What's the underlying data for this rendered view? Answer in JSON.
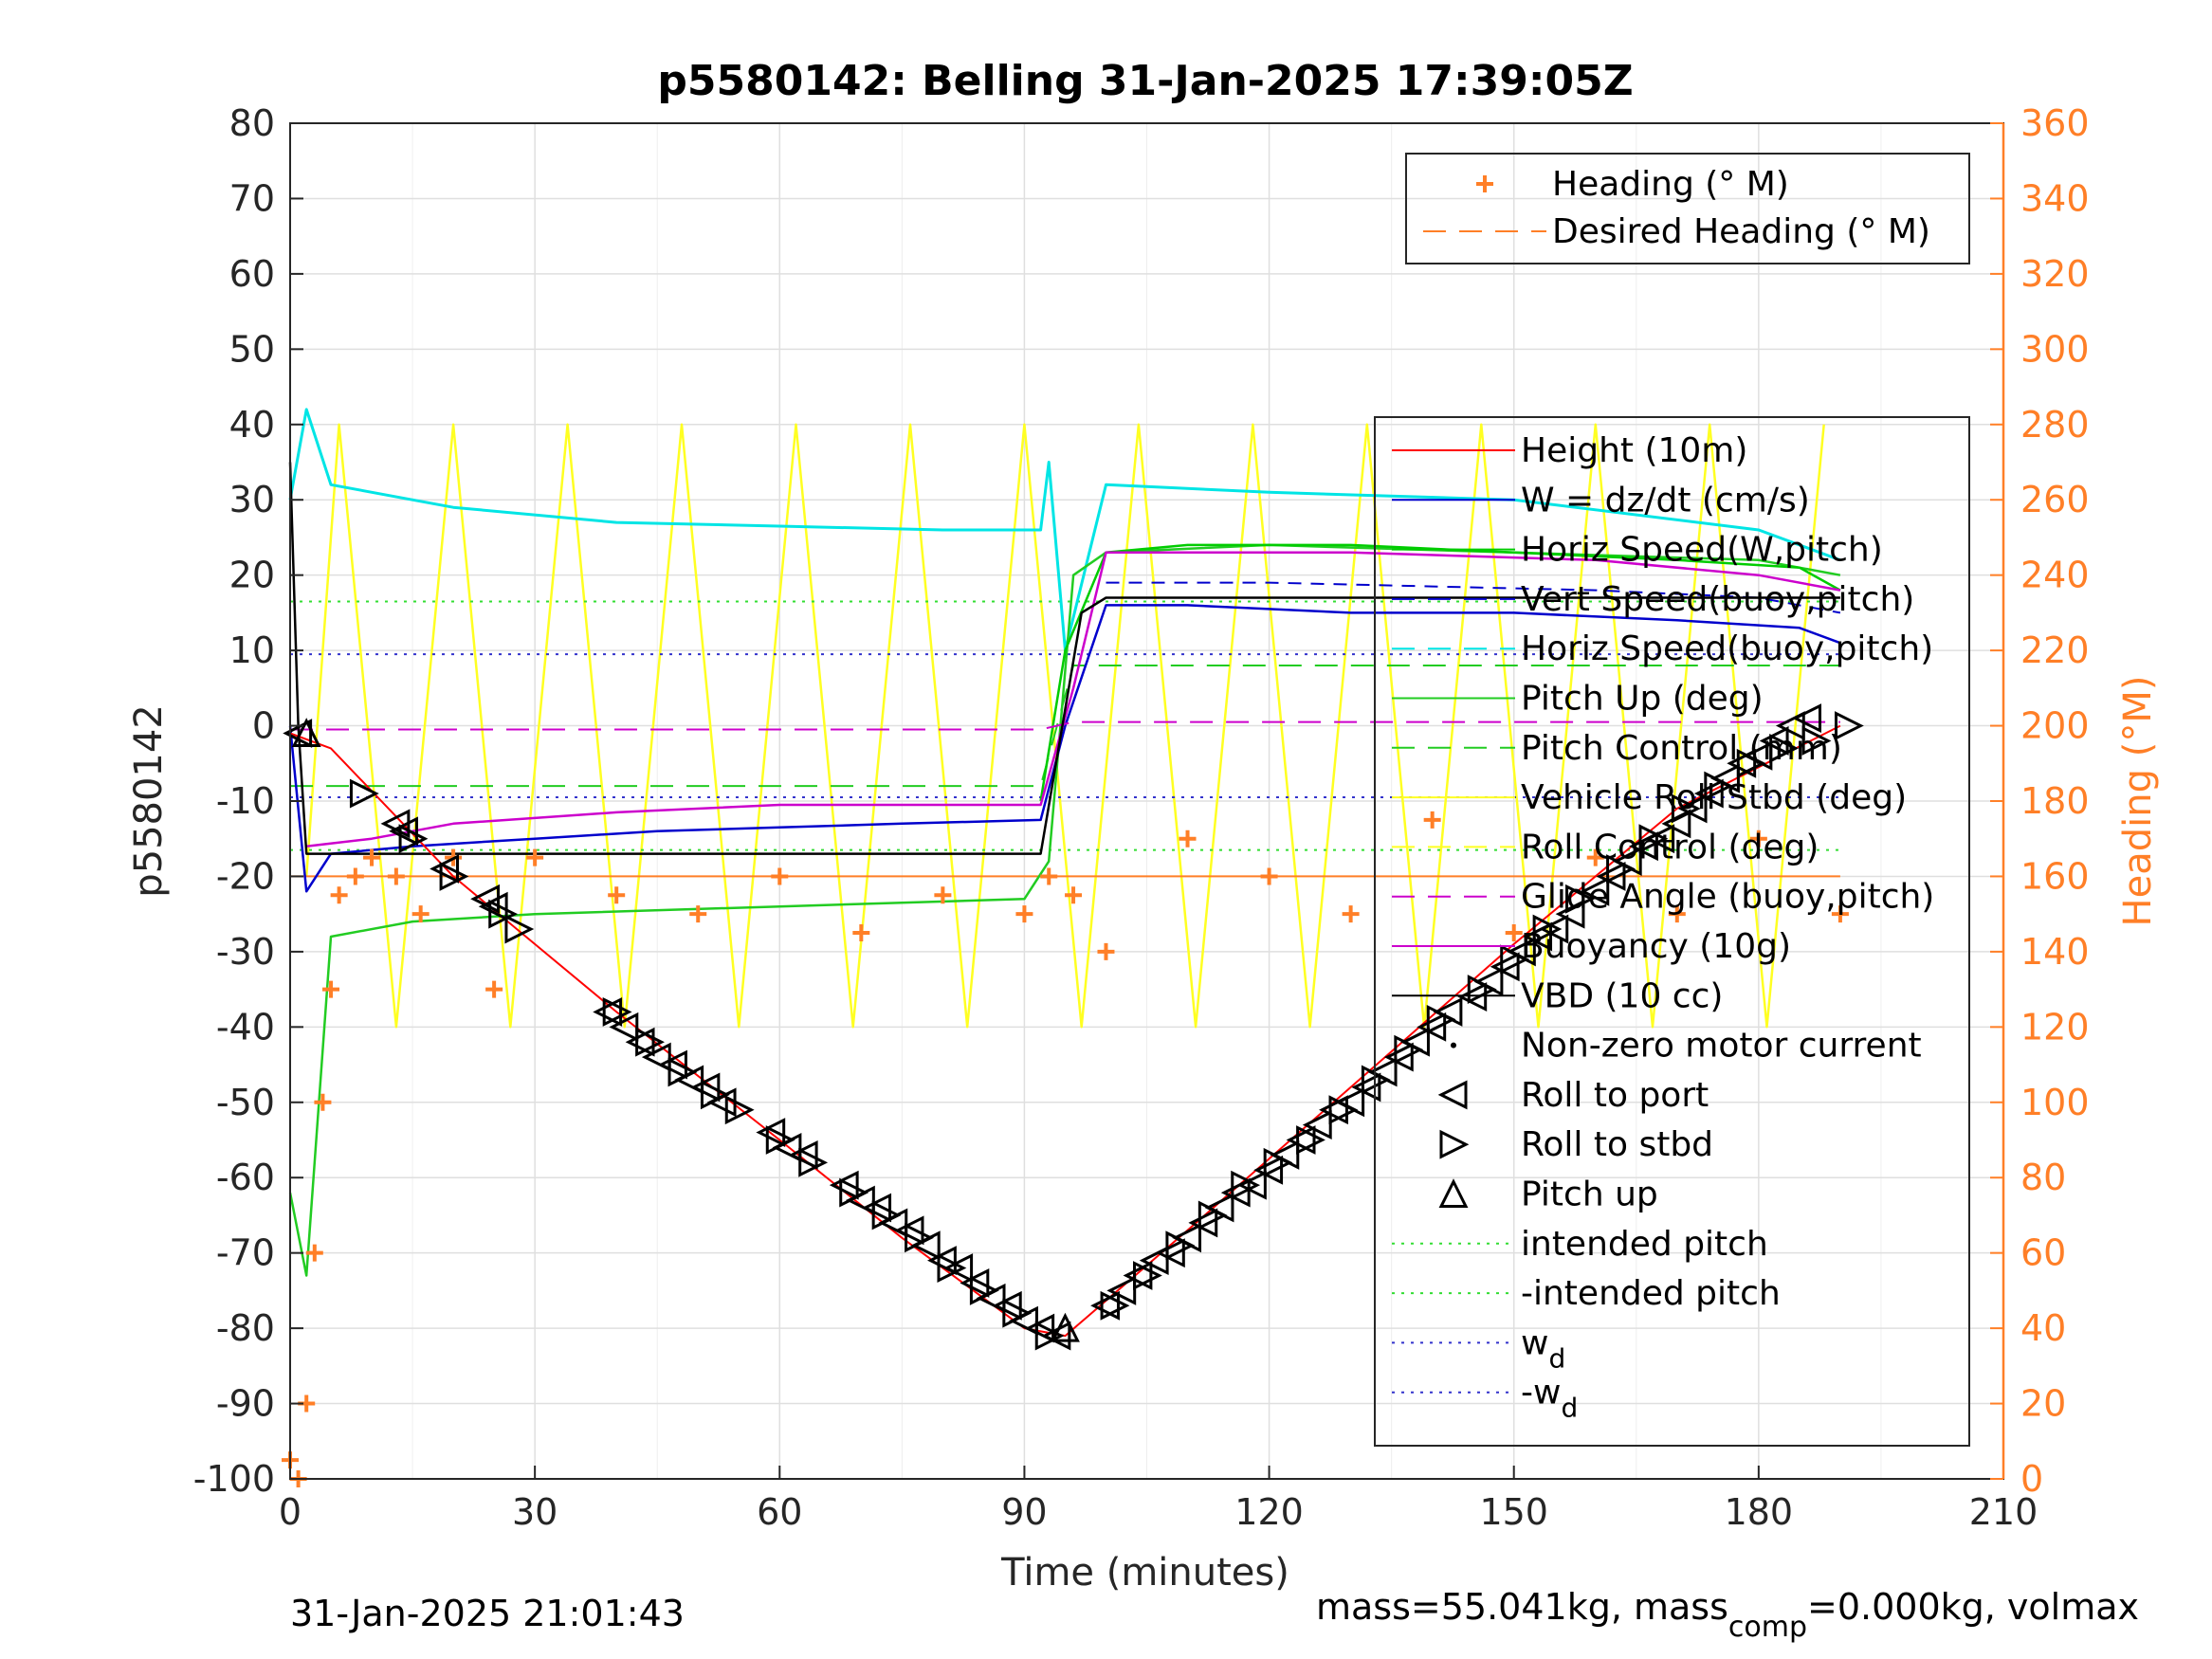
{
  "chart_data": {
    "type": "line",
    "title": "p5580142: Belling 31-Jan-2025 17:39:05Z",
    "xlabel": "Time (minutes)",
    "ylabel": "p5580142",
    "y2label": "Heading (°M)",
    "xlim": [
      0,
      210
    ],
    "ylim": [
      -100,
      80
    ],
    "y2lim": [
      0,
      360
    ],
    "xticks": [
      "0",
      "30",
      "60",
      "90",
      "120",
      "150",
      "180",
      "210"
    ],
    "yticks": [
      "80",
      "70",
      "60",
      "50",
      "40",
      "30",
      "20",
      "10",
      "0",
      "-10",
      "-20",
      "-30",
      "-40",
      "-50",
      "-60",
      "-70",
      "-80",
      "-90",
      "-100"
    ],
    "y2ticks": [
      "360",
      "340",
      "320",
      "300",
      "280",
      "260",
      "240",
      "220",
      "200",
      "180",
      "160",
      "140",
      "120",
      "100",
      "80",
      "60",
      "40",
      "20",
      "0"
    ],
    "grid": true,
    "footer_left": "31-Jan-2025 21:01:43",
    "footer_right": {
      "pre": "mass=55.041kg, mass",
      "sub": "comp",
      "post": "=0.000kg, volmax"
    },
    "colors": {
      "heading": "#ff7f27",
      "height": "#ff0000",
      "w": "#0000cc",
      "horiz_w": "#00cc00",
      "horiz_buoy": "#00e5e5",
      "pitch": "#22cc22",
      "roll": "#ffff22",
      "glide": "#cc00cc",
      "vbd": "#000000",
      "intended": "#33dd33",
      "wd": "#3333cc"
    },
    "legend_heading": {
      "placement": "top-right",
      "entries": [
        {
          "label": "Heading (° M)",
          "marker": "plus",
          "color": "#ff7f27"
        },
        {
          "label": "Desired Heading (° M)",
          "style": "dashed",
          "color": "#ff7f27"
        }
      ]
    },
    "legend_main": {
      "placement": "right",
      "entries": [
        {
          "label": "Height (10m)",
          "style": "solid",
          "color": "#ff0000"
        },
        {
          "label": "W = dz/dt (cm/s)",
          "style": "solid",
          "color": "#0000cc"
        },
        {
          "label": "Horiz Speed(W,pitch)",
          "style": "solid",
          "color": "#00cc00"
        },
        {
          "label": "Vert Speed(buoy,pitch)",
          "style": "dashed",
          "color": "#0000cc"
        },
        {
          "label": "Horiz Speed(buoy,pitch)",
          "style": "dashed",
          "color": "#00e5e5"
        },
        {
          "label": "Pitch Up (deg)",
          "style": "solid",
          "color": "#22cc22"
        },
        {
          "label": "Pitch Control (mm)",
          "style": "dashed",
          "color": "#22cc22"
        },
        {
          "label": "Vehicle Roll Stbd (deg)",
          "style": "solid",
          "color": "#ffff22"
        },
        {
          "label": "Roll Control (deg)",
          "style": "dashed",
          "color": "#ffff22"
        },
        {
          "label": "Glide Angle (buoy,pitch)",
          "style": "dashed",
          "color": "#cc00cc"
        },
        {
          "label": "Buoyancy (10g)",
          "style": "solid",
          "color": "#cc00cc"
        },
        {
          "label": "VBD (10 cc)",
          "style": "solid",
          "color": "#000000"
        },
        {
          "label": "Non-zero motor current",
          "marker": "dot",
          "color": "#000000"
        },
        {
          "label": "Roll to port",
          "marker": "tri-left",
          "color": "#000000"
        },
        {
          "label": "Roll to stbd",
          "marker": "tri-right",
          "color": "#000000"
        },
        {
          "label": "Pitch up",
          "marker": "tri-up",
          "color": "#000000"
        },
        {
          "label": "intended pitch",
          "style": "dotted",
          "color": "#33dd33"
        },
        {
          "label": "-intended pitch",
          "style": "dotted",
          "color": "#33dd33"
        },
        {
          "label": "w",
          "sub": "d",
          "style": "dotted",
          "color": "#3333cc"
        },
        {
          "label": "-w",
          "sub": "d",
          "style": "dotted",
          "color": "#3333cc"
        }
      ]
    },
    "series": [
      {
        "name": "Height (10m)",
        "x": [
          0,
          5,
          20,
          40,
          60,
          75,
          90,
          95,
          110,
          130,
          150,
          170,
          190
        ],
        "y": [
          -1,
          -3,
          -20,
          -38,
          -55,
          -68,
          -80,
          -81,
          -67,
          -48,
          -29,
          -11,
          0
        ]
      },
      {
        "name": "W = dz/dt (cm/s)",
        "x": [
          0,
          2,
          5,
          15,
          30,
          45,
          60,
          75,
          92,
          95,
          100,
          110,
          130,
          150,
          170,
          185,
          190
        ],
        "y": [
          0,
          -22,
          -17,
          -16,
          -15,
          -14,
          -13.5,
          -13,
          -12.5,
          0,
          16,
          16,
          15,
          15,
          14,
          13,
          11
        ]
      },
      {
        "name": "Horiz Speed(W,pitch)",
        "x": [
          92,
          95,
          100,
          110,
          130,
          150,
          170,
          185,
          190
        ],
        "y": [
          -10,
          10,
          23,
          24,
          24,
          23,
          22,
          21,
          18
        ]
      },
      {
        "name": "Vert Speed(buoy,pitch)",
        "x": [
          100,
          120,
          140,
          160,
          180,
          190
        ],
        "y": [
          19,
          19,
          18.5,
          18,
          17,
          15
        ]
      },
      {
        "name": "Horiz Speed(buoy,pitch)",
        "x": [
          0,
          2,
          5,
          20,
          40,
          60,
          80,
          92,
          93,
          95,
          100,
          120,
          150,
          180,
          190
        ],
        "y": [
          30,
          42,
          32,
          29,
          27,
          26.5,
          26,
          26,
          35,
          10,
          32,
          31,
          30,
          26,
          22
        ]
      },
      {
        "name": "Pitch Up (deg)",
        "x": [
          0,
          2,
          5,
          15,
          30,
          60,
          90,
          93,
          96,
          100,
          120,
          150,
          180,
          190
        ],
        "y": [
          -62,
          -73,
          -28,
          -26,
          -25,
          -24,
          -23,
          -18,
          20,
          23,
          24,
          23,
          22,
          20
        ]
      },
      {
        "name": "Pitch Control (mm)",
        "x": [
          0,
          10,
          92,
          96,
          190
        ],
        "y": [
          -8,
          -8,
          -8,
          8,
          8
        ]
      },
      {
        "name": "Vehicle Roll Stbd (deg)",
        "x": [
          2,
          6,
          13,
          20,
          27,
          34,
          41,
          48,
          55,
          62,
          69,
          76,
          83,
          90,
          97,
          104,
          111,
          118,
          125,
          132,
          139,
          146,
          153,
          160,
          167,
          174,
          181,
          188
        ],
        "y": [
          -20,
          40,
          -40,
          40,
          -40,
          40,
          -40,
          40,
          -40,
          40,
          -40,
          40,
          -40,
          40,
          -40,
          40,
          -40,
          40,
          -40,
          40,
          -40,
          40,
          -40,
          40,
          -40,
          40,
          -40,
          40
        ]
      },
      {
        "name": "Glide Angle (buoy,pitch)",
        "x": [
          0,
          92,
          96,
          190
        ],
        "y": [
          -0.5,
          -0.5,
          0.5,
          0.5
        ]
      },
      {
        "name": "Buoyancy (10g)",
        "x": [
          2,
          10,
          20,
          40,
          60,
          80,
          92,
          96,
          100,
          130,
          160,
          180,
          190
        ],
        "y": [
          -16,
          -15,
          -13,
          -11.5,
          -10.5,
          -10.5,
          -10.5,
          5,
          23,
          23,
          22,
          20,
          18
        ]
      },
      {
        "name": "VBD (10 cc)",
        "x": [
          0,
          1,
          2,
          92,
          97,
          100,
          190
        ],
        "y": [
          35,
          0,
          -17,
          -17,
          15,
          17,
          17
        ]
      },
      {
        "name": "intended pitch",
        "x": [
          0,
          190
        ],
        "y": [
          16.5,
          16.5
        ]
      },
      {
        "name": "-intended pitch",
        "x": [
          0,
          190
        ],
        "y": [
          -16.5,
          -16.5
        ]
      },
      {
        "name": "w",
        "x": [
          0,
          190
        ],
        "y": [
          9.5,
          9.5
        ]
      },
      {
        "name": "-w",
        "x": [
          0,
          190
        ],
        "y": [
          -9.5,
          -9.5
        ]
      },
      {
        "name": "Desired Heading (° M)",
        "x": [
          0,
          190
        ],
        "y2": [
          160,
          160
        ]
      },
      {
        "name": "Heading (° M)",
        "x": [
          0,
          1,
          2,
          3,
          4,
          5,
          6,
          8,
          10,
          13,
          16,
          20,
          25,
          30,
          40,
          50,
          60,
          70,
          80,
          90,
          93,
          96,
          100,
          110,
          120,
          130,
          140,
          150,
          160,
          170,
          180,
          190
        ],
        "y2": [
          5,
          0,
          20,
          60,
          100,
          130,
          155,
          160,
          165,
          160,
          150,
          165,
          130,
          165,
          155,
          150,
          160,
          145,
          155,
          150,
          160,
          155,
          140,
          170,
          160,
          150,
          175,
          145,
          165,
          150,
          170,
          150
        ]
      },
      {
        "name": "Roll to port",
        "x": [
          1,
          13,
          14,
          19,
          24,
          25,
          39,
          41,
          43,
          45,
          47,
          49,
          51,
          53,
          59,
          61,
          63,
          68,
          70,
          72,
          74,
          76,
          78,
          80,
          82,
          84,
          86,
          88,
          90,
          92,
          94,
          100,
          102,
          104,
          106,
          108,
          110,
          112,
          114,
          116,
          118,
          120,
          122,
          124,
          126,
          128,
          130,
          132,
          134,
          136,
          138,
          140,
          142,
          145,
          147,
          149,
          151,
          153,
          155,
          157,
          160,
          162,
          164,
          166,
          168,
          170,
          172,
          174,
          176,
          178,
          180,
          182,
          184,
          186
        ],
        "y": [
          -1,
          -13,
          -14,
          -19,
          -23,
          -24,
          -38,
          -40,
          -42,
          -44,
          -45,
          -47,
          -48,
          -50,
          -54,
          -56,
          -57,
          -61,
          -63,
          -64,
          -66,
          -67,
          -69,
          -71,
          -72,
          -74,
          -76,
          -77,
          -79,
          -80,
          -81,
          -77,
          -75,
          -73,
          -71,
          -70,
          -68,
          -66,
          -64,
          -62,
          -61,
          -59,
          -57,
          -55,
          -53,
          -51,
          -50,
          -48,
          -46,
          -44,
          -42,
          -40,
          -38,
          -36,
          -34,
          -32,
          -30,
          -28,
          -27,
          -25,
          -22,
          -20,
          -18,
          -16,
          -15,
          -13,
          -11,
          -9,
          -7,
          -5,
          -4,
          -2,
          0,
          1
        ]
      },
      {
        "name": "Roll to stbd",
        "x": [
          9,
          15,
          20,
          26,
          28,
          40,
          44,
          48,
          52,
          55,
          60,
          64,
          69,
          73,
          77,
          81,
          85,
          89,
          93,
          101,
          105,
          109,
          113,
          117,
          121,
          125,
          129,
          133,
          137,
          141,
          146,
          150,
          154,
          158,
          163,
          167,
          171,
          175,
          179,
          183,
          187,
          191
        ],
        "y": [
          -9,
          -15,
          -20,
          -25,
          -27,
          -38,
          -42,
          -46,
          -49,
          -51,
          -55,
          -58,
          -62,
          -65,
          -68,
          -72,
          -75,
          -78,
          -81,
          -77,
          -73,
          -69,
          -65,
          -61,
          -58,
          -55,
          -51,
          -47,
          -43,
          -39,
          -35,
          -31,
          -27,
          -23,
          -19,
          -15,
          -11,
          -8,
          -5,
          -3,
          -2,
          0
        ]
      },
      {
        "name": "Pitch up",
        "x": [
          2,
          95
        ],
        "y": [
          -1,
          -80
        ]
      }
    ]
  }
}
